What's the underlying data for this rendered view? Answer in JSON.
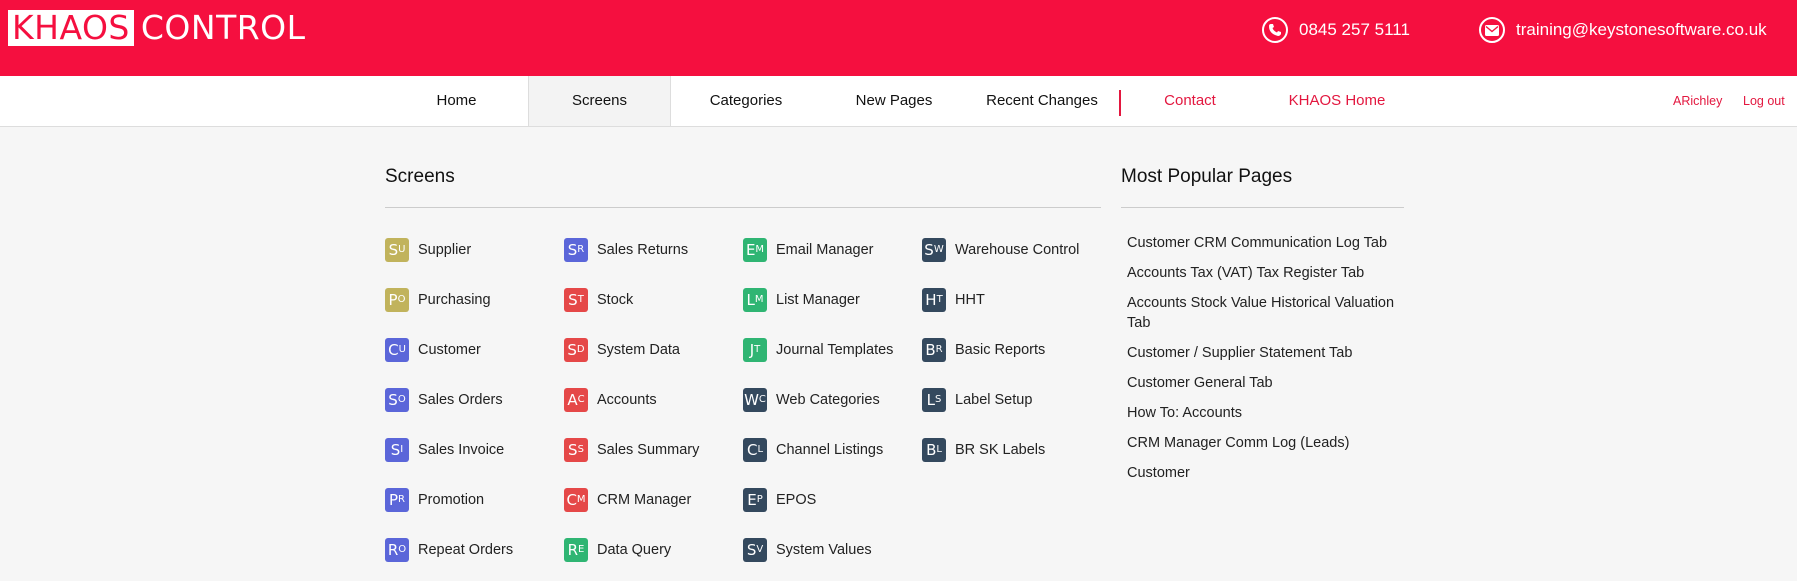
{
  "brand": {
    "logo_box": "KHAOS",
    "logo_text": "CONTROL"
  },
  "contact": {
    "phone": "0845 257 5111",
    "email": "training@keystonesoftware.co.uk"
  },
  "nav": {
    "items": [
      "Home",
      "Screens",
      "Categories",
      "New Pages",
      "Recent Changes"
    ],
    "links": [
      "Contact",
      "KHAOS Home"
    ],
    "user": "ARichley",
    "logout": "Log out"
  },
  "screens": {
    "title": "Screens",
    "columns": [
      [
        {
          "code": "Su",
          "label": "Supplier",
          "color": "#c1b35c"
        },
        {
          "code": "Po",
          "label": "Purchasing",
          "color": "#c1b35c"
        },
        {
          "code": "Cu",
          "label": "Customer",
          "color": "#5b66d9"
        },
        {
          "code": "So",
          "label": "Sales Orders",
          "color": "#5b66d9"
        },
        {
          "code": "Si",
          "label": "Sales Invoice",
          "color": "#5b66d9"
        },
        {
          "code": "Pr",
          "label": "Promotion",
          "color": "#5b66d9"
        },
        {
          "code": "Ro",
          "label": "Repeat Orders",
          "color": "#5b66d9"
        }
      ],
      [
        {
          "code": "Sr",
          "label": "Sales Returns",
          "color": "#5b66d9"
        },
        {
          "code": "St",
          "label": "Stock",
          "color": "#e54848"
        },
        {
          "code": "Sd",
          "label": "System Data",
          "color": "#e54848"
        },
        {
          "code": "Ac",
          "label": "Accounts",
          "color": "#e54848"
        },
        {
          "code": "Ss",
          "label": "Sales Summary",
          "color": "#e54848"
        },
        {
          "code": "Cm",
          "label": "CRM Manager",
          "color": "#e54848"
        },
        {
          "code": "Re",
          "label": "Data Query",
          "color": "#2fb573"
        }
      ],
      [
        {
          "code": "Em",
          "label": "Email Manager",
          "color": "#2fb573"
        },
        {
          "code": "Lm",
          "label": "List Manager",
          "color": "#2fb573"
        },
        {
          "code": "Jt",
          "label": "Journal Templates",
          "color": "#2fb573"
        },
        {
          "code": "Wc",
          "label": "Web Categories",
          "color": "#34495e"
        },
        {
          "code": "Cl",
          "label": "Channel Listings",
          "color": "#34495e"
        },
        {
          "code": "Ep",
          "label": "EPOS",
          "color": "#34495e"
        },
        {
          "code": "Sv",
          "label": "System Values",
          "color": "#34495e"
        }
      ],
      [
        {
          "code": "Sw",
          "label": "Warehouse Control",
          "color": "#34495e"
        },
        {
          "code": "Ht",
          "label": "HHT",
          "color": "#34495e"
        },
        {
          "code": "Br",
          "label": "Basic Reports",
          "color": "#34495e"
        },
        {
          "code": "Ls",
          "label": "Label Setup",
          "color": "#34495e"
        },
        {
          "code": "Bl",
          "label": "BR SK Labels",
          "color": "#34495e"
        }
      ]
    ]
  },
  "popular": {
    "title": "Most Popular Pages",
    "items": [
      "Customer CRM Communication Log Tab",
      "Accounts Tax (VAT) Tax Register Tab",
      "Accounts Stock Value Historical Valuation Tab",
      "Customer / Supplier Statement Tab",
      "Customer General Tab",
      "How To: Accounts",
      "CRM Manager Comm Log (Leads)",
      "Customer"
    ]
  },
  "colors": {
    "brand_red": "#f50f3f",
    "link_red": "#e3173f"
  }
}
